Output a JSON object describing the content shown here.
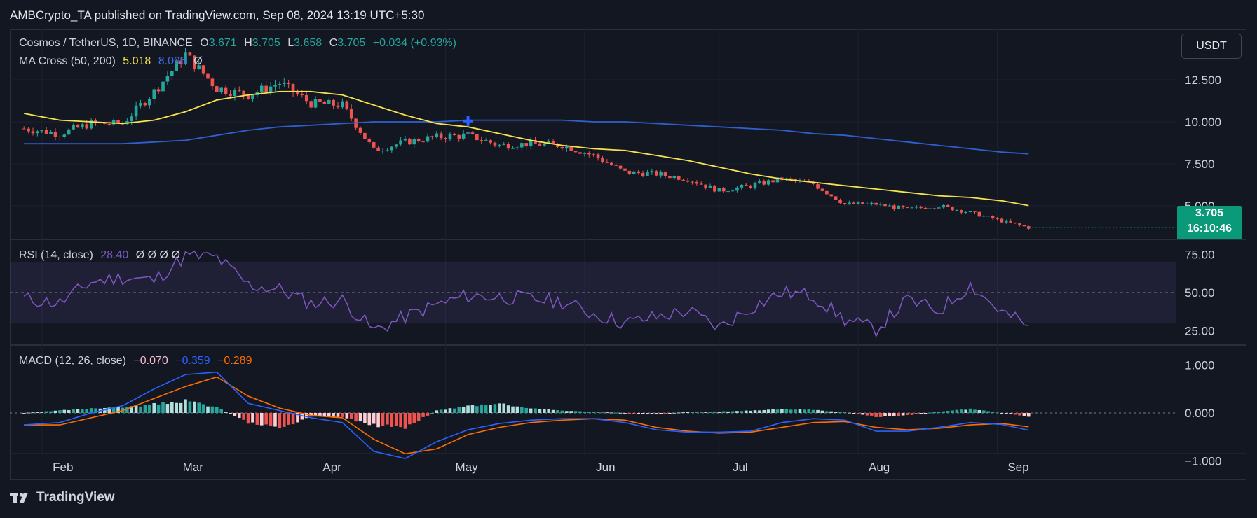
{
  "header": {
    "publisher_line": "AMBCrypto_TA published on TradingView.com, Sep 08, 2024 13:19 UTC+5:30"
  },
  "legend": {
    "symbol": "Cosmos / TetherUS, 1D, BINANCE",
    "o_label": "O",
    "o_value": "3.671",
    "h_label": "H",
    "h_value": "3.705",
    "l_label": "L",
    "l_value": "3.658",
    "c_label": "C",
    "c_value": "3.705",
    "change": "+0.034 (+0.93%)",
    "ma_label": "MA Cross (50, 200)",
    "ma_fast": "5.018",
    "ma_slow": "8.096",
    "ma_extra": "Ø",
    "rsi_label": "RSI (14, close)",
    "rsi_value": "28.40",
    "rsi_extra": "Ø Ø Ø Ø",
    "macd_label": "MACD (12, 26, close)",
    "macd_hist": "−0.070",
    "macd_line": "−0.359",
    "macd_signal": "−0.289"
  },
  "currency_button": "USDT",
  "price_tag": {
    "price": "3.705",
    "countdown": "16:10:46"
  },
  "x_axis_labels": [
    "Feb",
    "Mar",
    "Apr",
    "May",
    "Jun",
    "Jul",
    "Aug",
    "Sep"
  ],
  "footer": {
    "logo_text": "TradingView"
  },
  "colors": {
    "background": "#131722",
    "up": "#26a69a",
    "down": "#ef5350",
    "ma50": "#f7e34b",
    "ma200": "#2f5fd0",
    "rsi": "#7e57c2",
    "macd": "#2962ff",
    "signal": "#ff6d00"
  },
  "chart_data": [
    {
      "type": "candlestick",
      "name": "Cosmos / TetherUS",
      "dates": [
        "2024-01-28",
        "2024-02-05",
        "2024-02-12",
        "2024-02-19",
        "2024-02-26",
        "2024-03-04",
        "2024-03-11",
        "2024-03-18",
        "2024-03-25",
        "2024-04-01",
        "2024-04-08",
        "2024-04-15",
        "2024-04-22",
        "2024-04-29",
        "2024-05-06",
        "2024-05-13",
        "2024-05-20",
        "2024-05-27",
        "2024-06-03",
        "2024-06-10",
        "2024-06-17",
        "2024-06-24",
        "2024-07-01",
        "2024-07-08",
        "2024-07-15",
        "2024-07-22",
        "2024-07-29",
        "2024-08-05",
        "2024-08-12",
        "2024-08-19",
        "2024-08-26",
        "2024-09-02",
        "2024-09-08"
      ],
      "close": [
        9.6,
        9.3,
        9.9,
        9.9,
        11.8,
        14.0,
        12.0,
        11.6,
        12.3,
        11.1,
        11.0,
        8.3,
        8.8,
        9.1,
        9.2,
        8.6,
        8.7,
        8.6,
        8.0,
        7.0,
        6.9,
        6.6,
        5.9,
        6.2,
        6.6,
        6.3,
        5.1,
        5.1,
        4.8,
        5.0,
        4.6,
        4.1,
        3.705
      ],
      "ma_50": [
        10.5,
        10.1,
        10.0,
        9.9,
        10.1,
        10.6,
        11.3,
        11.6,
        11.8,
        11.8,
        11.6,
        11.0,
        10.4,
        9.9,
        9.7,
        9.3,
        8.9,
        8.6,
        8.4,
        8.3,
        8.0,
        7.7,
        7.3,
        6.9,
        6.6,
        6.4,
        6.2,
        6.0,
        5.8,
        5.6,
        5.5,
        5.3,
        5.018
      ],
      "ma_200": [
        8.7,
        8.7,
        8.7,
        8.7,
        8.8,
        8.9,
        9.2,
        9.5,
        9.7,
        9.8,
        9.9,
        10.0,
        10.0,
        10.0,
        10.1,
        10.1,
        10.1,
        10.1,
        10.0,
        10.0,
        9.9,
        9.8,
        9.7,
        9.6,
        9.5,
        9.3,
        9.2,
        9.0,
        8.8,
        8.6,
        8.4,
        8.2,
        8.096
      ],
      "y_ticks": [
        5.0,
        7.5,
        10.0,
        12.5
      ],
      "ylim": [
        3.0,
        15.5
      ]
    },
    {
      "type": "line",
      "name": "RSI (14, close)",
      "dates": [
        "2024-01-28",
        "2024-02-05",
        "2024-02-12",
        "2024-02-19",
        "2024-02-26",
        "2024-03-04",
        "2024-03-11",
        "2024-03-18",
        "2024-03-25",
        "2024-04-01",
        "2024-04-08",
        "2024-04-15",
        "2024-04-22",
        "2024-04-29",
        "2024-05-06",
        "2024-05-13",
        "2024-05-20",
        "2024-05-27",
        "2024-06-03",
        "2024-06-10",
        "2024-06-17",
        "2024-06-24",
        "2024-07-01",
        "2024-07-08",
        "2024-07-15",
        "2024-07-22",
        "2024-07-29",
        "2024-08-05",
        "2024-08-12",
        "2024-08-19",
        "2024-08-26",
        "2024-09-02",
        "2024-09-08"
      ],
      "values": [
        46,
        43,
        57,
        60,
        58,
        74,
        73,
        55,
        52,
        43,
        45,
        25,
        34,
        42,
        48,
        47,
        46,
        44,
        36,
        30,
        34,
        38,
        27,
        40,
        50,
        48,
        32,
        26,
        45,
        38,
        55,
        37,
        28.4
      ],
      "bands": [
        30,
        50,
        70
      ],
      "y_ticks": [
        25.0,
        50.0,
        75.0
      ],
      "ylim": [
        16,
        84
      ]
    },
    {
      "type": "bar",
      "name": "MACD (12, 26, close)",
      "dates": [
        "2024-01-28",
        "2024-02-05",
        "2024-02-12",
        "2024-02-19",
        "2024-02-26",
        "2024-03-04",
        "2024-03-11",
        "2024-03-18",
        "2024-03-25",
        "2024-04-01",
        "2024-04-08",
        "2024-04-15",
        "2024-04-22",
        "2024-04-29",
        "2024-05-06",
        "2024-05-13",
        "2024-05-20",
        "2024-05-27",
        "2024-06-03",
        "2024-06-10",
        "2024-06-17",
        "2024-06-24",
        "2024-07-01",
        "2024-07-08",
        "2024-07-15",
        "2024-07-22",
        "2024-07-29",
        "2024-08-05",
        "2024-08-12",
        "2024-08-19",
        "2024-08-26",
        "2024-09-02",
        "2024-09-08"
      ],
      "histogram": [
        0.0,
        0.05,
        0.1,
        0.12,
        0.18,
        0.25,
        0.12,
        -0.2,
        -0.3,
        -0.08,
        -0.1,
        -0.25,
        -0.3,
        0.05,
        0.15,
        0.2,
        0.1,
        0.05,
        0.02,
        0.0,
        -0.02,
        0.02,
        0.03,
        0.05,
        0.08,
        0.06,
        0.02,
        -0.08,
        -0.05,
        0.03,
        0.08,
        0.0,
        -0.07
      ],
      "macd": [
        -0.25,
        -0.2,
        0.0,
        0.15,
        0.5,
        0.8,
        0.85,
        0.2,
        0.05,
        -0.1,
        -0.2,
        -0.8,
        -0.95,
        -0.6,
        -0.35,
        -0.22,
        -0.15,
        -0.12,
        -0.12,
        -0.2,
        -0.35,
        -0.4,
        -0.4,
        -0.38,
        -0.2,
        -0.12,
        -0.15,
        -0.38,
        -0.38,
        -0.3,
        -0.2,
        -0.24,
        -0.359
      ],
      "signal": [
        -0.25,
        -0.25,
        -0.1,
        0.05,
        0.3,
        0.55,
        0.75,
        0.35,
        0.1,
        -0.05,
        -0.1,
        -0.55,
        -0.85,
        -0.75,
        -0.45,
        -0.3,
        -0.2,
        -0.15,
        -0.12,
        -0.15,
        -0.3,
        -0.38,
        -0.42,
        -0.4,
        -0.3,
        -0.2,
        -0.18,
        -0.3,
        -0.35,
        -0.32,
        -0.25,
        -0.22,
        -0.289
      ],
      "y_ticks": [
        -1.0,
        0.0,
        1.0
      ],
      "ylim": [
        -1.4,
        1.4
      ]
    }
  ]
}
